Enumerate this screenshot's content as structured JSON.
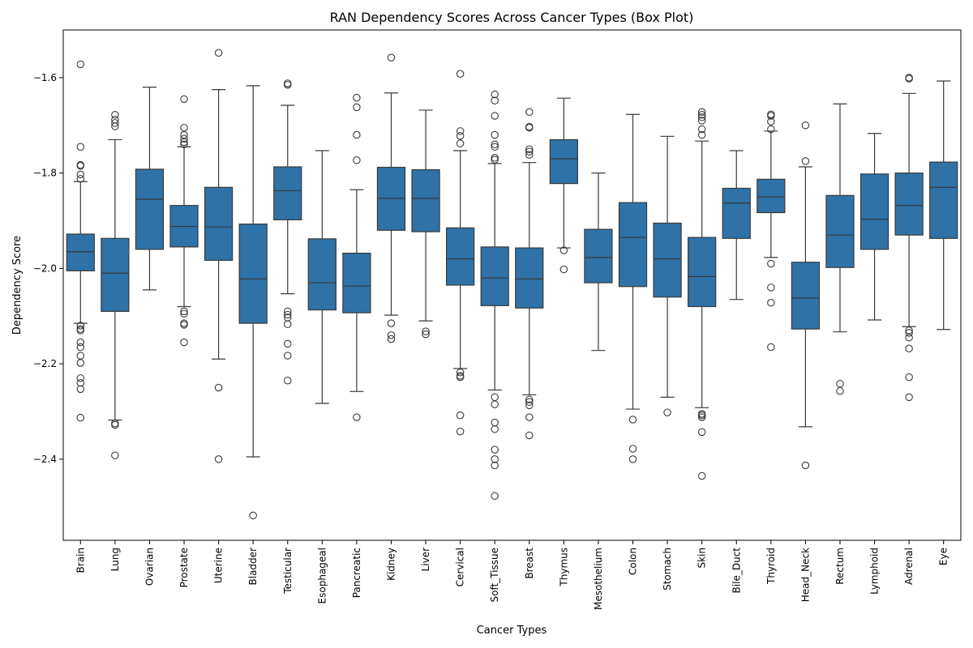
{
  "chart_data": {
    "type": "box",
    "title": "RAN Dependency Scores Across Cancer Types (Box Plot)",
    "xlabel": "Cancer Types",
    "ylabel": "Dependency Score",
    "ylim": [
      -2.57,
      -1.5
    ],
    "yticks": [
      -2.4,
      -2.2,
      -2.0,
      -1.8,
      -1.6
    ],
    "ytick_labels": [
      "−2.4",
      "−2.2",
      "−2.0",
      "−1.8",
      "−1.6"
    ],
    "grid": false,
    "legend": "none",
    "box_color": "#2e72a8",
    "line_color": "#3a3a3a",
    "categories": [
      "Brain",
      "Lung",
      "Ovarian",
      "Prostate",
      "Uterine",
      "Bladder",
      "Testicular",
      "Esophageal",
      "Pancreatic",
      "Kidney",
      "Liver",
      "Cervical",
      "Soft_Tissue",
      "Breast",
      "Thymus",
      "Mesothelium",
      "Colon",
      "Stomach",
      "Skin",
      "Bile_Duct",
      "Thyroid",
      "Head_Neck",
      "Rectum",
      "Lymphoid",
      "Adrenal",
      "Eye"
    ],
    "boxes": [
      {
        "min": -2.115,
        "q1": -2.005,
        "median": -1.965,
        "q3": -1.928,
        "max": -1.818,
        "outliers": [
          -1.572,
          -1.745,
          -1.783,
          -1.785,
          -1.803,
          -1.812,
          -2.12,
          -2.127,
          -2.13,
          -2.155,
          -2.165,
          -2.183,
          -2.198,
          -2.23,
          -2.24,
          -2.253,
          -2.313
        ]
      },
      {
        "min": -2.318,
        "q1": -2.09,
        "median": -2.01,
        "q3": -1.937,
        "max": -1.73,
        "outliers": [
          -1.678,
          -1.688,
          -1.695,
          -1.702,
          -2.325,
          -2.328,
          -2.392
        ]
      },
      {
        "min": -2.045,
        "q1": -1.96,
        "median": -1.855,
        "q3": -1.792,
        "max": -1.62,
        "outliers": []
      },
      {
        "min": -2.08,
        "q1": -1.955,
        "median": -1.912,
        "q3": -1.868,
        "max": -1.745,
        "outliers": [
          -1.645,
          -1.705,
          -1.72,
          -1.728,
          -1.735,
          -1.74,
          -2.09,
          -2.095,
          -2.115,
          -2.118,
          -2.155
        ]
      },
      {
        "min": -2.19,
        "q1": -1.983,
        "median": -1.913,
        "q3": -1.83,
        "max": -1.625,
        "outliers": [
          -1.548,
          -2.25,
          -2.4
        ]
      },
      {
        "min": -2.395,
        "q1": -2.115,
        "median": -2.022,
        "q3": -1.907,
        "max": -1.617,
        "outliers": [
          -2.518
        ]
      },
      {
        "min": -2.053,
        "q1": -1.898,
        "median": -1.837,
        "q3": -1.787,
        "max": -1.658,
        "outliers": [
          -1.612,
          -1.615,
          -2.09,
          -2.097,
          -2.103,
          -2.117,
          -2.158,
          -2.183,
          -2.235
        ]
      },
      {
        "min": -2.283,
        "q1": -2.087,
        "median": -2.03,
        "q3": -1.938,
        "max": -1.753,
        "outliers": []
      },
      {
        "min": -2.258,
        "q1": -2.093,
        "median": -2.037,
        "q3": -1.968,
        "max": -1.835,
        "outliers": [
          -1.642,
          -1.662,
          -1.72,
          -1.773,
          -2.312
        ]
      },
      {
        "min": -2.098,
        "q1": -1.92,
        "median": -1.853,
        "q3": -1.788,
        "max": -1.632,
        "outliers": [
          -1.558,
          -2.115,
          -2.14,
          -2.148
        ]
      },
      {
        "min": -2.11,
        "q1": -1.923,
        "median": -1.853,
        "q3": -1.793,
        "max": -1.668,
        "outliers": [
          -2.132,
          -2.138
        ]
      },
      {
        "min": -2.21,
        "q1": -2.035,
        "median": -1.98,
        "q3": -1.915,
        "max": -1.753,
        "outliers": [
          -1.592,
          -1.712,
          -1.722,
          -1.738,
          -2.218,
          -2.225,
          -2.228,
          -2.308,
          -2.342
        ]
      },
      {
        "min": -2.255,
        "q1": -2.078,
        "median": -2.02,
        "q3": -1.955,
        "max": -1.78,
        "outliers": [
          -1.635,
          -1.648,
          -1.68,
          -1.72,
          -1.74,
          -1.745,
          -1.768,
          -1.772,
          -2.27,
          -2.285,
          -2.323,
          -2.337,
          -2.38,
          -2.4,
          -2.413,
          -2.477
        ]
      },
      {
        "min": -2.265,
        "q1": -2.083,
        "median": -2.022,
        "q3": -1.957,
        "max": -1.778,
        "outliers": [
          -1.672,
          -1.703,
          -1.705,
          -1.75,
          -1.755,
          -1.762,
          -2.275,
          -2.28,
          -2.287,
          -2.312,
          -2.35
        ]
      },
      {
        "min": -1.957,
        "q1": -1.822,
        "median": -1.77,
        "q3": -1.73,
        "max": -1.643,
        "outliers": [
          -1.962,
          -2.002
        ]
      },
      {
        "min": -2.172,
        "q1": -2.03,
        "median": -1.977,
        "q3": -1.918,
        "max": -1.8,
        "outliers": []
      },
      {
        "min": -2.295,
        "q1": -2.038,
        "median": -1.935,
        "q3": -1.862,
        "max": -1.677,
        "outliers": [
          -2.317,
          -2.378,
          -2.4
        ]
      },
      {
        "min": -2.27,
        "q1": -2.06,
        "median": -1.98,
        "q3": -1.905,
        "max": -1.723,
        "outliers": [
          -2.302
        ]
      },
      {
        "min": -2.292,
        "q1": -2.08,
        "median": -2.017,
        "q3": -1.935,
        "max": -1.733,
        "outliers": [
          -1.672,
          -1.678,
          -1.683,
          -1.69,
          -1.708,
          -1.72,
          -2.305,
          -2.308,
          -2.312,
          -2.343,
          -2.435
        ]
      },
      {
        "min": -2.065,
        "q1": -1.937,
        "median": -1.863,
        "q3": -1.832,
        "max": -1.753,
        "outliers": []
      },
      {
        "min": -1.977,
        "q1": -1.883,
        "median": -1.85,
        "q3": -1.813,
        "max": -1.712,
        "outliers": [
          -1.677,
          -1.68,
          -1.692,
          -1.708,
          -1.99,
          -2.04,
          -2.072,
          -2.165
        ]
      },
      {
        "min": -2.332,
        "q1": -2.127,
        "median": -2.062,
        "q3": -1.987,
        "max": -1.787,
        "outliers": [
          -1.7,
          -1.775,
          -2.413
        ]
      },
      {
        "min": -2.133,
        "q1": -1.998,
        "median": -1.93,
        "q3": -1.847,
        "max": -1.655,
        "outliers": [
          -2.242,
          -2.257
        ]
      },
      {
        "min": -2.108,
        "q1": -1.96,
        "median": -1.897,
        "q3": -1.802,
        "max": -1.717,
        "outliers": []
      },
      {
        "min": -2.122,
        "q1": -1.93,
        "median": -1.868,
        "q3": -1.8,
        "max": -1.633,
        "outliers": [
          -1.6,
          -1.602,
          -2.13,
          -2.135,
          -2.145,
          -2.168,
          -2.228,
          -2.27
        ]
      },
      {
        "min": -2.128,
        "q1": -1.937,
        "median": -1.83,
        "q3": -1.777,
        "max": -1.607,
        "outliers": []
      }
    ]
  }
}
